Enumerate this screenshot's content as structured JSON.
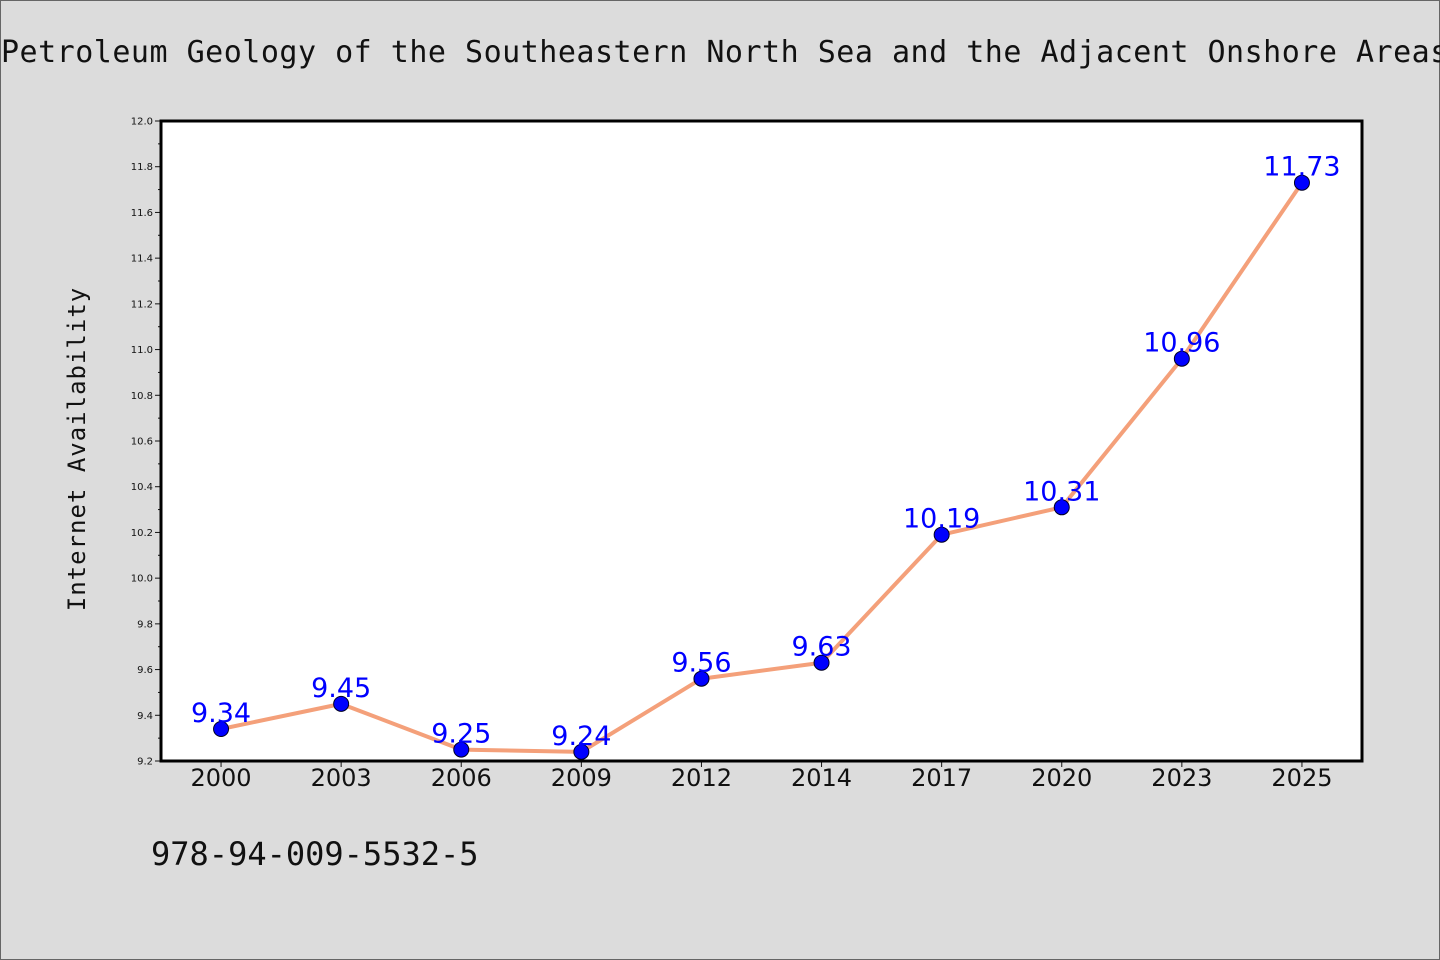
{
  "chart_data": {
    "type": "line",
    "title": "Petroleum Geology of the Southeastern North Sea and the Adjacent Onshore Areas",
    "ylabel": "Internet Availability",
    "xlabel": "",
    "categories": [
      "2000",
      "2003",
      "2006",
      "2009",
      "2012",
      "2014",
      "2017",
      "2020",
      "2023",
      "2025"
    ],
    "series": [
      {
        "values": [
          9.34,
          9.45,
          9.25,
          9.24,
          9.56,
          9.63,
          10.19,
          10.31,
          10.96,
          11.73
        ],
        "data_labels": [
          "9.34",
          "9.45",
          "9.25",
          "9.24",
          "9.56",
          "9.63",
          "10.19",
          "10.31",
          "10.96",
          "11.73"
        ]
      }
    ],
    "ylim": [
      9.2,
      12.0
    ],
    "yticks": [
      "9.2",
      "9.4",
      "9.6",
      "9.8",
      "10.0",
      "10.2",
      "10.4",
      "10.6",
      "10.8",
      "11.0",
      "11.2",
      "11.4",
      "11.6",
      "11.8",
      "12.0"
    ],
    "grid": false,
    "legend": "none",
    "colors": {
      "line": "#f4a07a",
      "marker": "#0000ff",
      "data_label": "#0000ff",
      "plot_background": "#ffffff",
      "figure_background": "#dcdcdc"
    }
  },
  "footer": {
    "note": "978-94-009-5532-5"
  }
}
